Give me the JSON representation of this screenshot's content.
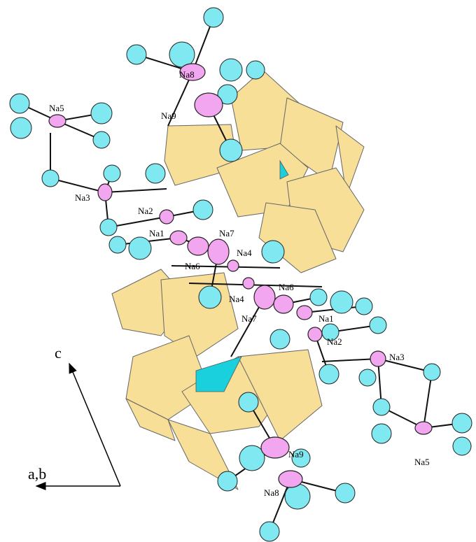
{
  "atom_labels": [
    "Na8",
    "Na5",
    "Na9",
    "Na3",
    "Na2",
    "Na1",
    "Na7",
    "Na4",
    "Na6",
    "Na6",
    "Na4",
    "Na7",
    "Na1",
    "Na2",
    "Na3",
    "Na9",
    "Na5",
    "Na8"
  ],
  "axes": {
    "vertical": "c",
    "horizontal": "a,b"
  }
}
